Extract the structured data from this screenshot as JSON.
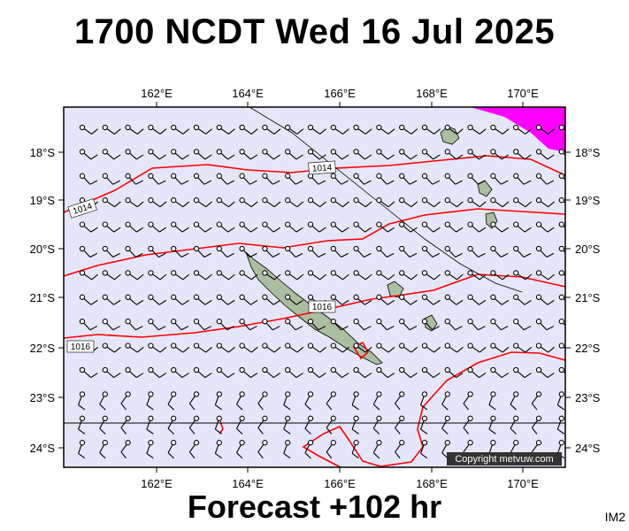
{
  "title": "1700 NCDT Wed 16 Jul 2025",
  "footer": "Forecast +102 hr",
  "corner_label": "IM2",
  "copyright": "Copyright metvuw.com",
  "axes": {
    "lon_labels": [
      "162°E",
      "164°E",
      "166°E",
      "168°E",
      "170°E"
    ],
    "lat_labels": [
      "18°S",
      "19°S",
      "20°S",
      "21°S",
      "22°S",
      "23°S",
      "24°S"
    ]
  },
  "isobar_labels": [
    "1014",
    "1014",
    "1016",
    "1016"
  ],
  "colors": {
    "sea": "#e6e6fa",
    "isobar": "#ff0000",
    "high_wind": "#ff00ff",
    "land": "#a9bfa0"
  }
}
